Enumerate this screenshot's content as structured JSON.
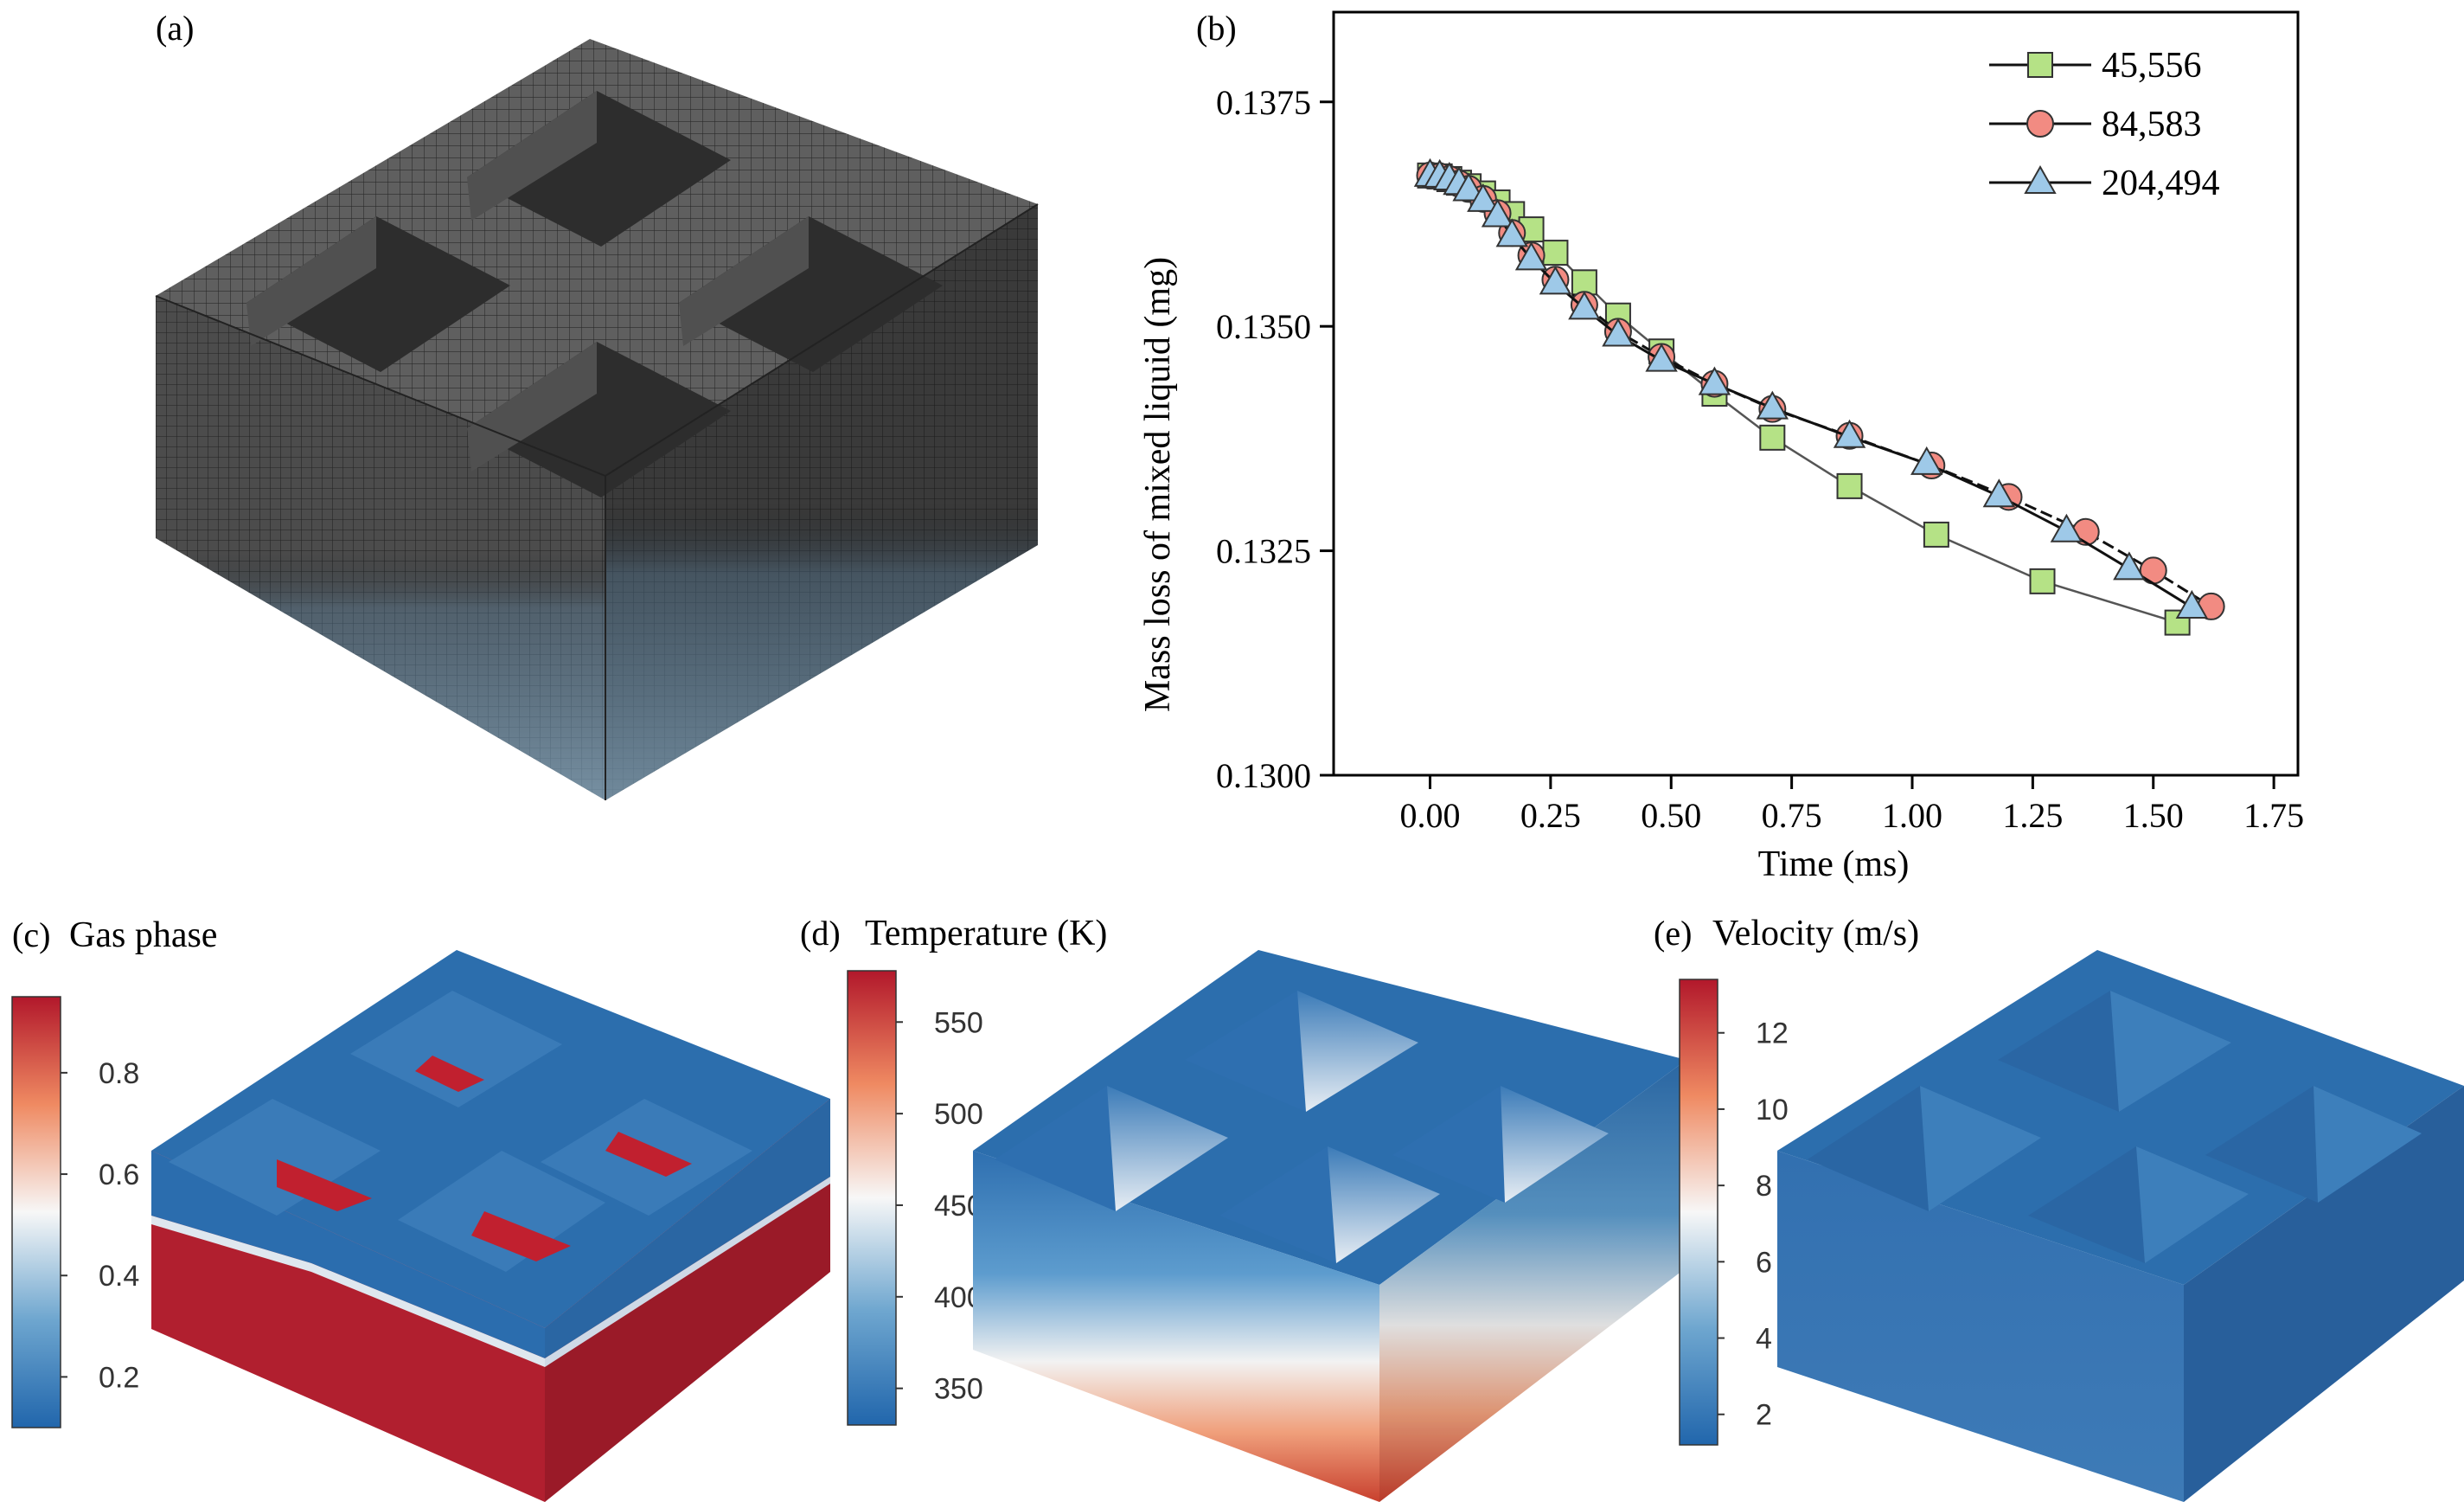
{
  "panels": {
    "a": {
      "label": "(a)"
    },
    "b": {
      "label": "(b)"
    },
    "c": {
      "label": "(c)",
      "title": "Gas phase",
      "colorbar": {
        "ticks": [
          "0.2",
          "0.4",
          "0.6",
          "0.8"
        ],
        "min": 0.1,
        "max": 0.95
      }
    },
    "d": {
      "label": "(d)",
      "title": "Temperature  (K)",
      "colorbar": {
        "ticks": [
          "350",
          "400",
          "450",
          "500",
          "550"
        ],
        "min": 330,
        "max": 578
      }
    },
    "e": {
      "label": "(e)",
      "title": "Velocity  (m/s)",
      "colorbar": {
        "ticks": [
          "2",
          "4",
          "6",
          "8",
          "10",
          "12"
        ],
        "min": 1.2,
        "max": 13.4
      }
    }
  },
  "colors": {
    "mesh_top": "#5f5f5f",
    "mesh_left": "#4a4a4a",
    "mesh_right": "#383838",
    "field_blue": "#2166ac",
    "field_red": "#b2182b",
    "series_45556": "#b5e286",
    "series_84583": "#f28b82",
    "series_204494": "#9ec9e8"
  },
  "chart_data": {
    "type": "line",
    "title": "",
    "xlabel": "Time (ms)",
    "ylabel": "Mass loss of mixed liquid (mg)",
    "xlim": [
      -0.2,
      1.8
    ],
    "ylim": [
      0.13,
      0.1385
    ],
    "xticks": [
      "0.00",
      "0.25",
      "0.50",
      "0.75",
      "1.00",
      "1.25",
      "1.50",
      "1.75"
    ],
    "yticks": [
      "0.1300",
      "0.1325",
      "0.1350",
      "0.1375"
    ],
    "legend_position": "top-right",
    "series": [
      {
        "name": "45,556",
        "marker": "square",
        "x": [
          0.0,
          0.02,
          0.04,
          0.06,
          0.08,
          0.11,
          0.14,
          0.17,
          0.21,
          0.26,
          0.32,
          0.39,
          0.48,
          0.59,
          0.71,
          0.87,
          1.05,
          1.27,
          1.55
        ],
        "y": [
          0.13668,
          0.13667,
          0.13664,
          0.1366,
          0.13656,
          0.13648,
          0.13638,
          0.13625,
          0.13608,
          0.13582,
          0.13549,
          0.13512,
          0.13472,
          0.13425,
          0.13376,
          0.13322,
          0.13268,
          0.13216,
          0.1317
        ]
      },
      {
        "name": "84,583",
        "marker": "circle",
        "x": [
          0.0,
          0.02,
          0.04,
          0.06,
          0.08,
          0.11,
          0.14,
          0.17,
          0.21,
          0.26,
          0.32,
          0.39,
          0.48,
          0.59,
          0.71,
          0.87,
          1.04,
          1.2,
          1.36,
          1.5,
          1.62
        ],
        "y": [
          0.13668,
          0.13667,
          0.13664,
          0.13659,
          0.13653,
          0.13642,
          0.13626,
          0.13604,
          0.13579,
          0.13552,
          0.13524,
          0.13494,
          0.13466,
          0.13436,
          0.13408,
          0.13378,
          0.13345,
          0.1331,
          0.13271,
          0.13228,
          0.13188
        ]
      },
      {
        "name": "204,494",
        "marker": "triangle",
        "x": [
          0.0,
          0.02,
          0.04,
          0.06,
          0.08,
          0.11,
          0.14,
          0.17,
          0.21,
          0.26,
          0.32,
          0.39,
          0.48,
          0.59,
          0.71,
          0.87,
          1.03,
          1.18,
          1.32,
          1.45,
          1.58
        ],
        "y": [
          0.13668,
          0.13667,
          0.13664,
          0.13659,
          0.13652,
          0.1364,
          0.13623,
          0.13601,
          0.13575,
          0.13548,
          0.1352,
          0.1349,
          0.13462,
          0.13436,
          0.13409,
          0.13377,
          0.13347,
          0.13311,
          0.13272,
          0.1323,
          0.13187
        ]
      }
    ]
  }
}
